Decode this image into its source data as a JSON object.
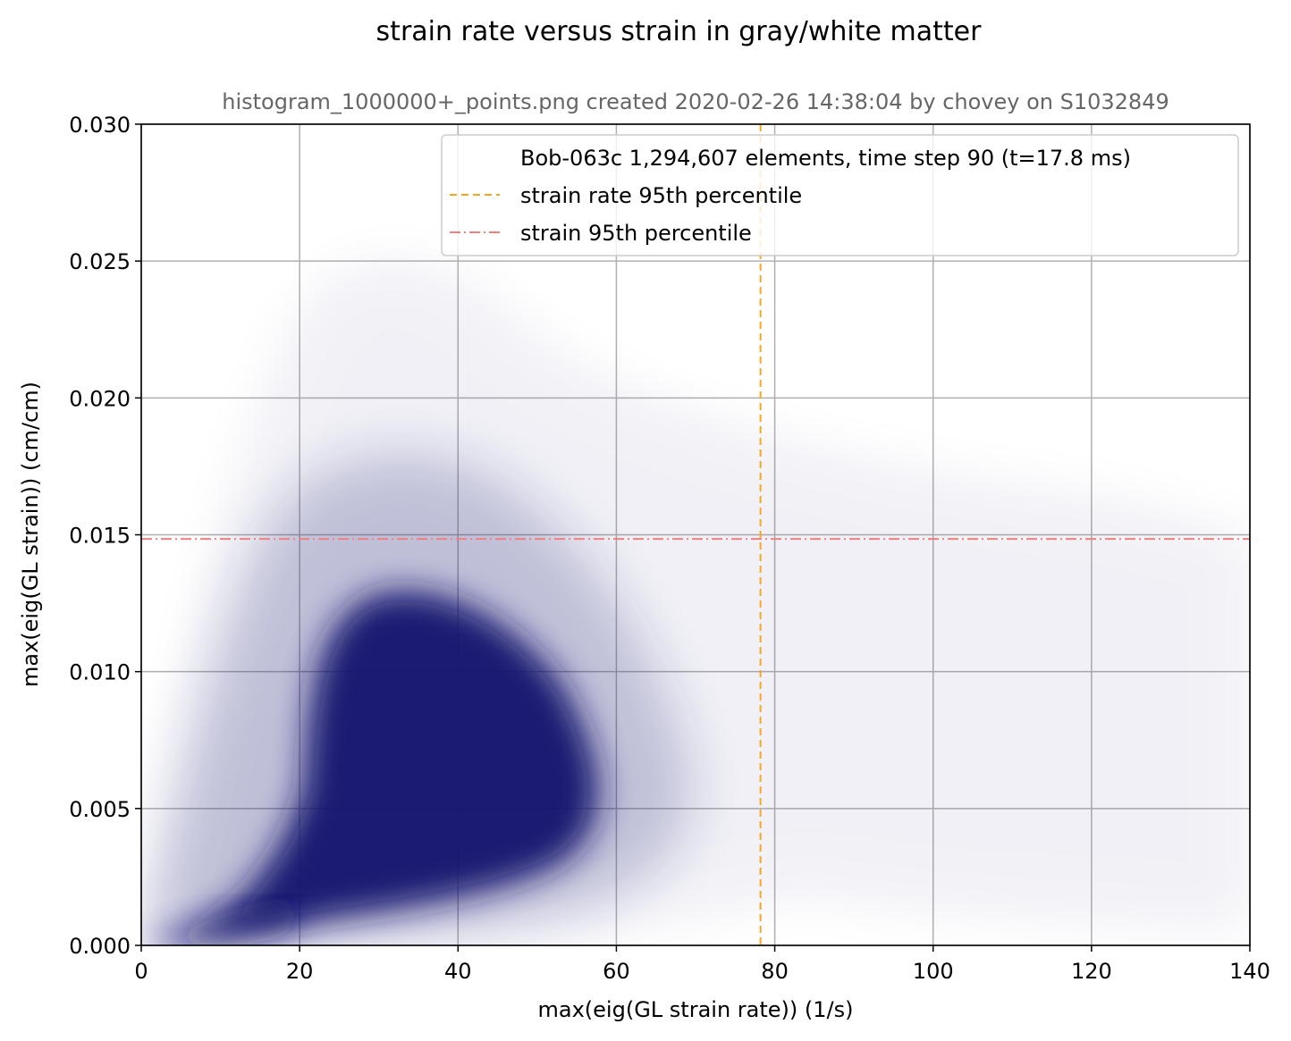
{
  "chart_data": {
    "type": "scatter",
    "title": "strain rate versus strain in gray/white matter",
    "subtitle": "histogram_1000000+_points.png created 2020-02-26 14:38:04 by chovey on S1032849",
    "xlabel": "max(eig(GL strain rate)) (1/s)",
    "ylabel": "max(eig(GL strain)) (cm/cm)",
    "xlim": [
      0,
      140
    ],
    "ylim": [
      0,
      0.03
    ],
    "xticks": [
      "0",
      "20",
      "40",
      "60",
      "80",
      "100",
      "120",
      "140"
    ],
    "yticks": [
      "0.000",
      "0.005",
      "0.010",
      "0.015",
      "0.020",
      "0.025",
      "0.030"
    ],
    "grid": true,
    "legend_position": "upper right",
    "legend": [
      {
        "label": "Bob-063c 1,294,607 elements, time step 90 (t=17.8 ms)",
        "style": "none"
      },
      {
        "label": "strain rate 95th percentile",
        "style": "dashed",
        "color": "#f5a623"
      },
      {
        "label": "strain 95th percentile",
        "style": "dashdot",
        "color": "#f08080"
      }
    ],
    "reference_lines": [
      {
        "orientation": "vertical",
        "value": 78.2,
        "color": "#f5a623",
        "style": "dashed"
      },
      {
        "orientation": "horizontal",
        "value": 0.01485,
        "color": "#f08080",
        "style": "dashdot"
      }
    ],
    "series": [
      {
        "color": "#191970",
        "point_count": 1294607,
        "approximate_density_points": [
          [
            2,
            0.0002
          ],
          [
            5,
            0.0004
          ],
          [
            10,
            0.0008
          ],
          [
            20,
            0.004
          ],
          [
            30,
            0.008
          ],
          [
            35,
            0.009
          ],
          [
            40,
            0.008
          ],
          [
            45,
            0.006
          ],
          [
            50,
            0.004
          ],
          [
            55,
            0.0025
          ],
          [
            60,
            0.004
          ],
          [
            70,
            0.0035
          ],
          [
            90,
            0.006
          ],
          [
            110,
            0.007
          ]
        ]
      }
    ]
  }
}
